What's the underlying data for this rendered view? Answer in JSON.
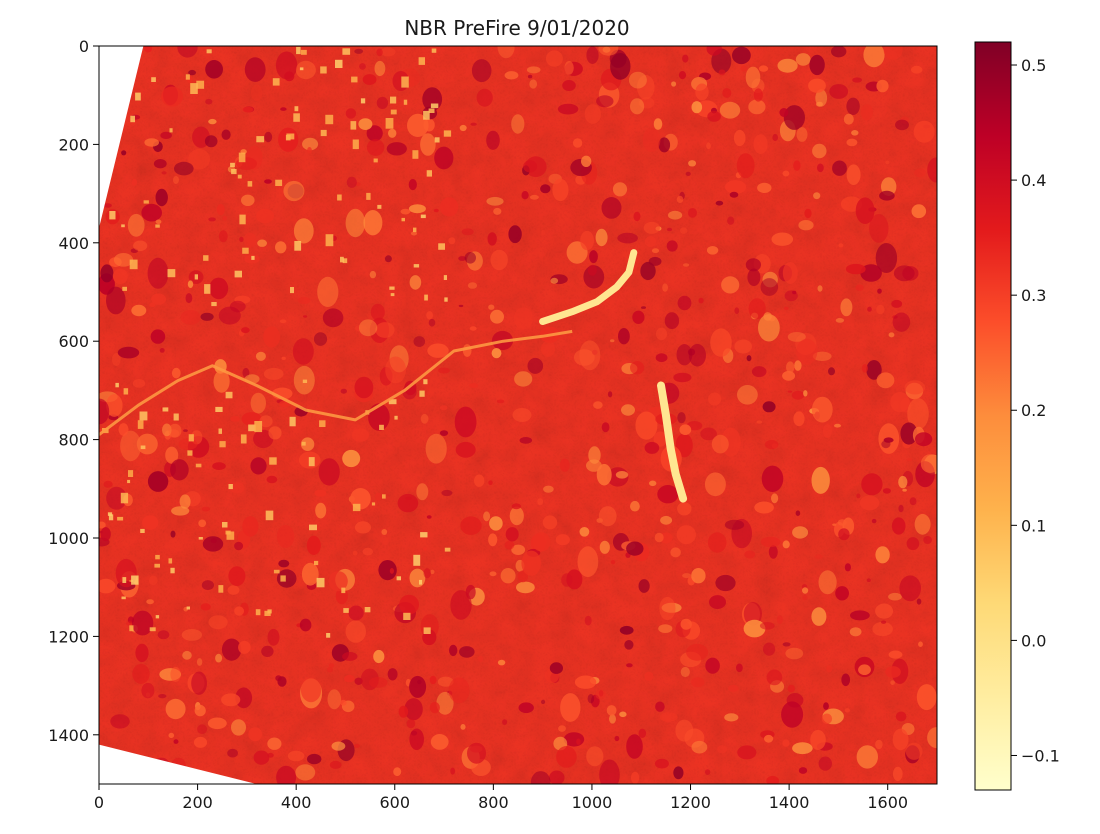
{
  "chart_data": {
    "type": "heatmap",
    "title": "NBR PreFire 9/01/2020",
    "xlabel": "",
    "ylabel": "",
    "xlim": [
      0,
      1700
    ],
    "ylim": [
      1500,
      0
    ],
    "x_ticks": [
      {
        "value": 0,
        "label": "0"
      },
      {
        "value": 200,
        "label": "200"
      },
      {
        "value": 400,
        "label": "400"
      },
      {
        "value": 600,
        "label": "600"
      },
      {
        "value": 800,
        "label": "800"
      },
      {
        "value": 1000,
        "label": "1000"
      },
      {
        "value": 1200,
        "label": "1200"
      },
      {
        "value": 1400,
        "label": "1400"
      },
      {
        "value": 1600,
        "label": "1600"
      }
    ],
    "y_ticks": [
      {
        "value": 0,
        "label": "0"
      },
      {
        "value": 200,
        "label": "200"
      },
      {
        "value": 400,
        "label": "400"
      },
      {
        "value": 600,
        "label": "600"
      },
      {
        "value": 800,
        "label": "800"
      },
      {
        "value": 1000,
        "label": "1000"
      },
      {
        "value": 1200,
        "label": "1200"
      },
      {
        "value": 1400,
        "label": "1400"
      }
    ],
    "colormap": "YlOrRd",
    "colormap_stops": [
      "#ffffcc",
      "#ffeda0",
      "#fed976",
      "#feb24c",
      "#fd8d3c",
      "#fc4e2a",
      "#e31a1c",
      "#bd0026",
      "#800026"
    ],
    "colorbar": {
      "vmin": -0.13,
      "vmax": 0.52,
      "ticks": [
        {
          "value": 0.5,
          "label": "0.5"
        },
        {
          "value": 0.4,
          "label": "0.4"
        },
        {
          "value": 0.3,
          "label": "0.3"
        },
        {
          "value": 0.2,
          "label": "0.2"
        },
        {
          "value": 0.1,
          "label": "0.1"
        },
        {
          "value": 0.0,
          "label": "0.0"
        },
        {
          "value": -0.1,
          "label": "−0.1"
        }
      ]
    },
    "typical_value": 0.32,
    "nodata_color": "#ffffff",
    "valid_region": [
      [
        90,
        0
      ],
      [
        1700,
        0
      ],
      [
        1700,
        1500
      ],
      [
        320,
        1500
      ],
      [
        0,
        1420
      ],
      [
        0,
        370
      ]
    ],
    "features": {
      "river_main": [
        [
          0,
          790
        ],
        [
          80,
          730
        ],
        [
          160,
          680
        ],
        [
          230,
          650
        ],
        [
          320,
          690
        ],
        [
          420,
          740
        ],
        [
          520,
          760
        ],
        [
          620,
          700
        ],
        [
          720,
          620
        ],
        [
          820,
          600
        ],
        [
          900,
          590
        ],
        [
          960,
          580
        ]
      ],
      "reservoir_north": [
        [
          900,
          560
        ],
        [
          960,
          540
        ],
        [
          1010,
          520
        ],
        [
          1050,
          490
        ],
        [
          1075,
          460
        ],
        [
          1085,
          420
        ]
      ],
      "reservoir_south": [
        [
          1140,
          690
        ],
        [
          1150,
          750
        ],
        [
          1160,
          820
        ],
        [
          1170,
          870
        ],
        [
          1185,
          920
        ]
      ]
    }
  }
}
